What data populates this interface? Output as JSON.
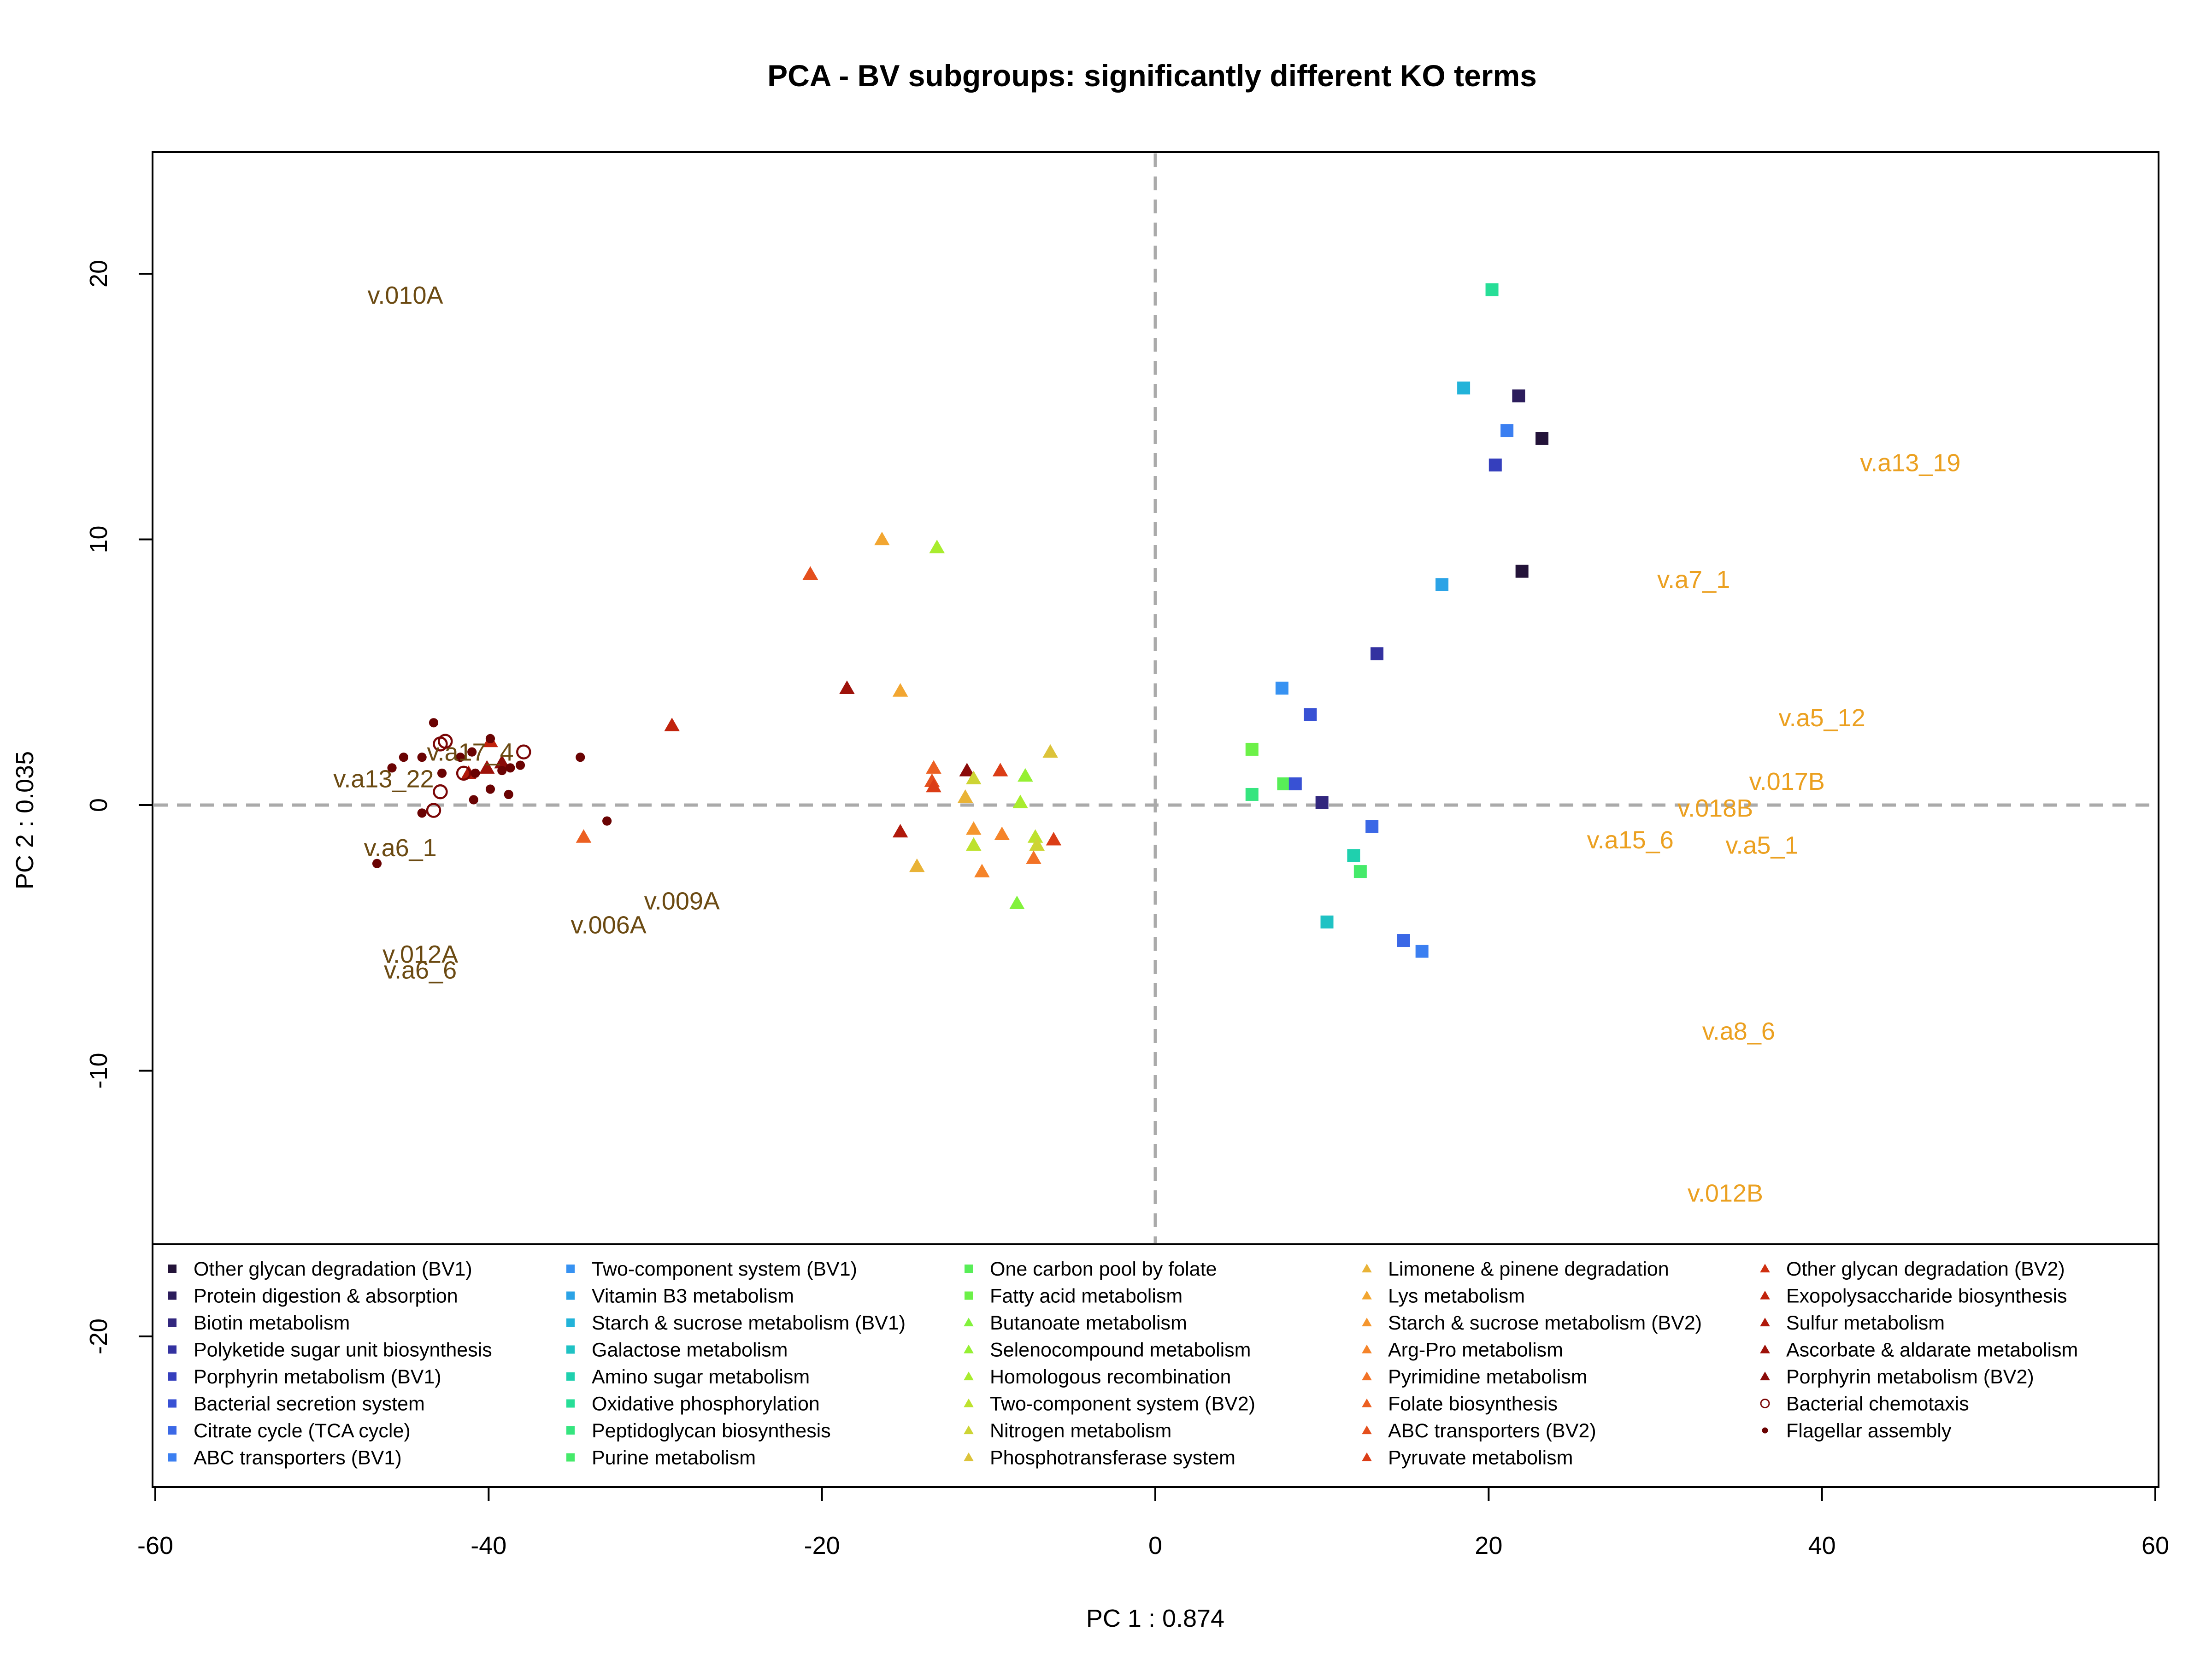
{
  "chart_data": {
    "type": "scatter",
    "title": "PCA - BV subgroups: significantly different KO terms",
    "xlabel": "PC 1 :  0.874",
    "ylabel": "PC 2 :  0.035",
    "xlim": [
      -60,
      60
    ],
    "ylim": [
      -25,
      25
    ],
    "xticks": [
      -60,
      -40,
      -20,
      0,
      20,
      40,
      60
    ],
    "yticks": [
      -20,
      -10,
      0,
      10,
      20
    ],
    "reference_lines": {
      "x": 0,
      "y": 0,
      "style": "dashed",
      "color": "#aaaaaa"
    },
    "legend_position": "bottom",
    "legend": [
      {
        "label": "Other glycan degradation (BV1)",
        "color": "#231339",
        "shape": "square"
      },
      {
        "label": "Protein digestion & absorption",
        "color": "#2c1d5c",
        "shape": "square"
      },
      {
        "label": "Biotin metabolism",
        "color": "#32277e",
        "shape": "square"
      },
      {
        "label": "Polyketide sugar unit biosynthesis",
        "color": "#3331a0",
        "shape": "square"
      },
      {
        "label": "Porphyrin metabolism (BV1)",
        "color": "#353fbd",
        "shape": "square"
      },
      {
        "label": "Bacterial secretion system",
        "color": "#3851d4",
        "shape": "square"
      },
      {
        "label": "Citrate cycle (TCA cycle)",
        "color": "#3b68e6",
        "shape": "square"
      },
      {
        "label": "ABC transporters (BV1)",
        "color": "#3b7ff1",
        "shape": "square"
      },
      {
        "label": "Two-component system (BV1)",
        "color": "#3792f2",
        "shape": "square"
      },
      {
        "label": "Vitamin B3 metabolism",
        "color": "#2ba3e6",
        "shape": "square"
      },
      {
        "label": "Starch & sucrose metabolism (BV1)",
        "color": "#22b3d9",
        "shape": "square"
      },
      {
        "label": "Galactose metabolism",
        "color": "#1fc2c4",
        "shape": "square"
      },
      {
        "label": "Amino sugar metabolism",
        "color": "#1fd0ae",
        "shape": "square"
      },
      {
        "label": "Oxidative phosphorylation",
        "color": "#27de97",
        "shape": "square"
      },
      {
        "label": "Peptidoglycan biosynthesis",
        "color": "#35e57f",
        "shape": "square"
      },
      {
        "label": "Purine metabolism",
        "color": "#45ea6a",
        "shape": "square"
      },
      {
        "label": "One carbon pool by folate",
        "color": "#58ee57",
        "shape": "square"
      },
      {
        "label": "Fatty acid metabolism",
        "color": "#6cf148",
        "shape": "square"
      },
      {
        "label": "Butanoate metabolism",
        "color": "#82f23c",
        "shape": "triangle"
      },
      {
        "label": "Selenocompound metabolism",
        "color": "#95f033",
        "shape": "triangle"
      },
      {
        "label": "Homologous recombination",
        "color": "#a8ec2e",
        "shape": "triangle"
      },
      {
        "label": "Two-component system (BV2)",
        "color": "#bde22e",
        "shape": "triangle"
      },
      {
        "label": "Nitrogen metabolism",
        "color": "#cdd434",
        "shape": "triangle"
      },
      {
        "label": "Phosphotransferase system",
        "color": "#dcc33a",
        "shape": "triangle"
      },
      {
        "label": "Limonene & pinene degradation",
        "color": "#e9b337",
        "shape": "triangle"
      },
      {
        "label": "Lys metabolism",
        "color": "#f2a631",
        "shape": "triangle"
      },
      {
        "label": "Starch & sucrose metabolism (BV2)",
        "color": "#f5962e",
        "shape": "triangle"
      },
      {
        "label": "Arg-Pro metabolism",
        "color": "#f5842a",
        "shape": "triangle"
      },
      {
        "label": "Pyrimidine metabolism",
        "color": "#f27226",
        "shape": "triangle"
      },
      {
        "label": "Folate biosynthesis",
        "color": "#ec6022",
        "shape": "triangle"
      },
      {
        "label": "ABC transporters (BV2)",
        "color": "#e44f1d",
        "shape": "triangle"
      },
      {
        "label": "Pyruvate metabolism",
        "color": "#db3d16",
        "shape": "triangle"
      },
      {
        "label": "Other glycan degradation (BV2)",
        "color": "#cf2f10",
        "shape": "triangle"
      },
      {
        "label": "Exopolysaccharide biosynthesis",
        "color": "#c1230c",
        "shape": "triangle"
      },
      {
        "label": "Sulfur metabolism",
        "color": "#b0190b",
        "shape": "triangle"
      },
      {
        "label": "Ascorbate & aldarate metabolism",
        "color": "#9e120a",
        "shape": "triangle"
      },
      {
        "label": "Porphyrin metabolism (BV2)",
        "color": "#8b0b09",
        "shape": "triangle"
      },
      {
        "label": "Bacterial chemotaxis",
        "color": "#7a0606",
        "shape": "open-circle"
      },
      {
        "label": "Flagellar assembly",
        "color": "#6a0303",
        "shape": "dot"
      }
    ],
    "points": [
      {
        "x": 20.2,
        "y": 19.4,
        "color": "#27de97",
        "shape": "square"
      },
      {
        "x": 18.5,
        "y": 15.7,
        "color": "#22b3d9",
        "shape": "square"
      },
      {
        "x": 21.8,
        "y": 15.4,
        "color": "#2c1d5c",
        "shape": "square"
      },
      {
        "x": 21.1,
        "y": 14.1,
        "color": "#3b7ff1",
        "shape": "square"
      },
      {
        "x": 23.2,
        "y": 13.8,
        "color": "#231339",
        "shape": "square"
      },
      {
        "x": 20.4,
        "y": 12.8,
        "color": "#353fbd",
        "shape": "square"
      },
      {
        "x": 22.0,
        "y": 8.8,
        "color": "#231339",
        "shape": "square"
      },
      {
        "x": 17.2,
        "y": 8.3,
        "color": "#2ba3e6",
        "shape": "square"
      },
      {
        "x": 13.3,
        "y": 5.7,
        "color": "#3331a0",
        "shape": "square"
      },
      {
        "x": 7.6,
        "y": 4.4,
        "color": "#3792f2",
        "shape": "square"
      },
      {
        "x": 9.3,
        "y": 3.4,
        "color": "#3851d4",
        "shape": "square"
      },
      {
        "x": 5.8,
        "y": 2.1,
        "color": "#6cf148",
        "shape": "square"
      },
      {
        "x": 7.7,
        "y": 0.8,
        "color": "#58ee57",
        "shape": "square"
      },
      {
        "x": 8.4,
        "y": 0.8,
        "color": "#3851d4",
        "shape": "square"
      },
      {
        "x": 5.8,
        "y": 0.4,
        "color": "#35e57f",
        "shape": "square"
      },
      {
        "x": 10.0,
        "y": 0.1,
        "color": "#32277e",
        "shape": "square"
      },
      {
        "x": 13.0,
        "y": -0.8,
        "color": "#3b68e6",
        "shape": "square"
      },
      {
        "x": 11.9,
        "y": -1.9,
        "color": "#1fd0ae",
        "shape": "square"
      },
      {
        "x": 12.3,
        "y": -2.5,
        "color": "#45ea6a",
        "shape": "square"
      },
      {
        "x": 10.3,
        "y": -4.4,
        "color": "#1fc2c4",
        "shape": "square"
      },
      {
        "x": 14.9,
        "y": -5.1,
        "color": "#3b68e6",
        "shape": "square"
      },
      {
        "x": 16.0,
        "y": -5.5,
        "color": "#3b7ff1",
        "shape": "square"
      },
      {
        "x": -16.4,
        "y": 10.0,
        "color": "#f2a631",
        "shape": "triangle"
      },
      {
        "x": -13.1,
        "y": 9.7,
        "color": "#a8ec2e",
        "shape": "triangle"
      },
      {
        "x": -20.7,
        "y": 8.7,
        "color": "#e44f1d",
        "shape": "triangle"
      },
      {
        "x": -18.5,
        "y": 4.4,
        "color": "#9e120a",
        "shape": "triangle"
      },
      {
        "x": -15.3,
        "y": 4.3,
        "color": "#f2a631",
        "shape": "triangle"
      },
      {
        "x": -29.0,
        "y": 3.0,
        "color": "#c1230c",
        "shape": "triangle"
      },
      {
        "x": -6.3,
        "y": 2.0,
        "color": "#dcc33a",
        "shape": "triangle"
      },
      {
        "x": -13.3,
        "y": 1.4,
        "color": "#ec6022",
        "shape": "triangle"
      },
      {
        "x": -11.3,
        "y": 1.3,
        "color": "#8b0b09",
        "shape": "triangle"
      },
      {
        "x": -9.3,
        "y": 1.3,
        "color": "#db3d16",
        "shape": "triangle"
      },
      {
        "x": -7.8,
        "y": 1.1,
        "color": "#95f033",
        "shape": "triangle"
      },
      {
        "x": -10.9,
        "y": 1.0,
        "color": "#cdd434",
        "shape": "triangle"
      },
      {
        "x": -13.4,
        "y": 0.9,
        "color": "#e44f1d",
        "shape": "triangle"
      },
      {
        "x": -13.3,
        "y": 0.7,
        "color": "#db3d16",
        "shape": "triangle"
      },
      {
        "x": -11.4,
        "y": 0.3,
        "color": "#e9b337",
        "shape": "triangle"
      },
      {
        "x": -8.1,
        "y": 0.1,
        "color": "#a8ec2e",
        "shape": "triangle"
      },
      {
        "x": -15.3,
        "y": -1.0,
        "color": "#b0190b",
        "shape": "triangle"
      },
      {
        "x": -10.9,
        "y": -0.9,
        "color": "#f5962e",
        "shape": "triangle"
      },
      {
        "x": -9.2,
        "y": -1.1,
        "color": "#f5842a",
        "shape": "triangle"
      },
      {
        "x": -7.2,
        "y": -1.2,
        "color": "#bde22e",
        "shape": "triangle"
      },
      {
        "x": -6.1,
        "y": -1.3,
        "color": "#db3d16",
        "shape": "triangle"
      },
      {
        "x": -7.1,
        "y": -1.5,
        "color": "#cdd434",
        "shape": "triangle"
      },
      {
        "x": -10.9,
        "y": -1.5,
        "color": "#bde22e",
        "shape": "triangle"
      },
      {
        "x": -7.3,
        "y": -2.0,
        "color": "#f27226",
        "shape": "triangle"
      },
      {
        "x": -14.3,
        "y": -2.3,
        "color": "#e9b337",
        "shape": "triangle"
      },
      {
        "x": -10.4,
        "y": -2.5,
        "color": "#f5842a",
        "shape": "triangle"
      },
      {
        "x": -8.3,
        "y": -3.7,
        "color": "#82f23c",
        "shape": "triangle"
      },
      {
        "x": -34.3,
        "y": -1.2,
        "color": "#ec6022",
        "shape": "triangle"
      },
      {
        "x": -40.1,
        "y": 1.4,
        "color": "#9e120a",
        "shape": "triangle"
      },
      {
        "x": -39.2,
        "y": 1.6,
        "color": "#8b0b09",
        "shape": "triangle"
      },
      {
        "x": -41.2,
        "y": 1.2,
        "color": "#b0190b",
        "shape": "triangle"
      },
      {
        "x": -39.9,
        "y": 2.4,
        "color": "#c1230c",
        "shape": "triangle"
      },
      {
        "x": -42.9,
        "y": 2.3,
        "color": "#7a0606",
        "shape": "open-circle"
      },
      {
        "x": -42.6,
        "y": 2.4,
        "color": "#7a0606",
        "shape": "open-circle"
      },
      {
        "x": -37.9,
        "y": 2.0,
        "color": "#7a0606",
        "shape": "open-circle"
      },
      {
        "x": -41.5,
        "y": 1.2,
        "color": "#7a0606",
        "shape": "open-circle"
      },
      {
        "x": -42.9,
        "y": 0.5,
        "color": "#7a0606",
        "shape": "open-circle"
      },
      {
        "x": -43.3,
        "y": -0.2,
        "color": "#7a0606",
        "shape": "open-circle"
      },
      {
        "x": -43.3,
        "y": 3.1,
        "color": "#6a0303",
        "shape": "dot"
      },
      {
        "x": -45.1,
        "y": 1.8,
        "color": "#6a0303",
        "shape": "dot"
      },
      {
        "x": -44.0,
        "y": 1.8,
        "color": "#6a0303",
        "shape": "dot"
      },
      {
        "x": -45.8,
        "y": 1.4,
        "color": "#6a0303",
        "shape": "dot"
      },
      {
        "x": -41.7,
        "y": 1.8,
        "color": "#6a0303",
        "shape": "dot"
      },
      {
        "x": -41.0,
        "y": 2.0,
        "color": "#6a0303",
        "shape": "dot"
      },
      {
        "x": -39.9,
        "y": 2.5,
        "color": "#6a0303",
        "shape": "dot"
      },
      {
        "x": -38.7,
        "y": 1.4,
        "color": "#6a0303",
        "shape": "dot"
      },
      {
        "x": -38.1,
        "y": 1.5,
        "color": "#6a0303",
        "shape": "dot"
      },
      {
        "x": -39.2,
        "y": 1.3,
        "color": "#6a0303",
        "shape": "dot"
      },
      {
        "x": -42.8,
        "y": 1.2,
        "color": "#6a0303",
        "shape": "dot"
      },
      {
        "x": -40.8,
        "y": 1.2,
        "color": "#6a0303",
        "shape": "dot"
      },
      {
        "x": -39.9,
        "y": 0.6,
        "color": "#6a0303",
        "shape": "dot"
      },
      {
        "x": -38.8,
        "y": 0.4,
        "color": "#6a0303",
        "shape": "dot"
      },
      {
        "x": -40.9,
        "y": 0.2,
        "color": "#6a0303",
        "shape": "dot"
      },
      {
        "x": -34.5,
        "y": 1.8,
        "color": "#6a0303",
        "shape": "dot"
      },
      {
        "x": -44.0,
        "y": -0.3,
        "color": "#6a0303",
        "shape": "dot"
      },
      {
        "x": -32.9,
        "y": -0.6,
        "color": "#6a0303",
        "shape": "dot"
      },
      {
        "x": -46.7,
        "y": -2.2,
        "color": "#6a0303",
        "shape": "dot"
      }
    ],
    "sample_labels": [
      {
        "text": "v.010A",
        "x": -45.0,
        "y": 19.2,
        "group": "BV1"
      },
      {
        "text": "v.a13_22",
        "x": -46.3,
        "y": 1.0,
        "group": "BV1"
      },
      {
        "text": "v.a17_4",
        "x": -41.1,
        "y": 2.0,
        "group": "BV1"
      },
      {
        "text": "v.a6_1",
        "x": -45.3,
        "y": -1.6,
        "group": "BV1"
      },
      {
        "text": "v.009A",
        "x": -28.4,
        "y": -3.6,
        "group": "BV1"
      },
      {
        "text": "v.006A",
        "x": -32.8,
        "y": -4.5,
        "group": "BV1"
      },
      {
        "text": "v.012A",
        "x": -44.1,
        "y": -5.6,
        "group": "BV1"
      },
      {
        "text": "v.a6_6",
        "x": -44.1,
        "y": -6.2,
        "group": "BV1"
      },
      {
        "text": "v.a13_19",
        "x": 45.3,
        "y": 12.9,
        "group": "BV2"
      },
      {
        "text": "v.a7_1",
        "x": 32.3,
        "y": 8.5,
        "group": "BV2"
      },
      {
        "text": "v.a5_12",
        "x": 40.0,
        "y": 3.3,
        "group": "BV2"
      },
      {
        "text": "v.017B",
        "x": 37.9,
        "y": 0.9,
        "group": "BV2"
      },
      {
        "text": "v.018B",
        "x": 33.6,
        "y": -0.1,
        "group": "BV2"
      },
      {
        "text": "v.a15_6",
        "x": 28.5,
        "y": -1.3,
        "group": "BV2"
      },
      {
        "text": "v.a5_1",
        "x": 36.4,
        "y": -1.5,
        "group": "BV2"
      },
      {
        "text": "v.a8_6",
        "x": 35.0,
        "y": -8.5,
        "group": "BV2"
      },
      {
        "text": "v.012B",
        "x": 34.2,
        "y": -14.6,
        "group": "BV2"
      }
    ],
    "label_colors": {
      "BV1": "#6b4a12",
      "BV2": "#eba020"
    }
  }
}
